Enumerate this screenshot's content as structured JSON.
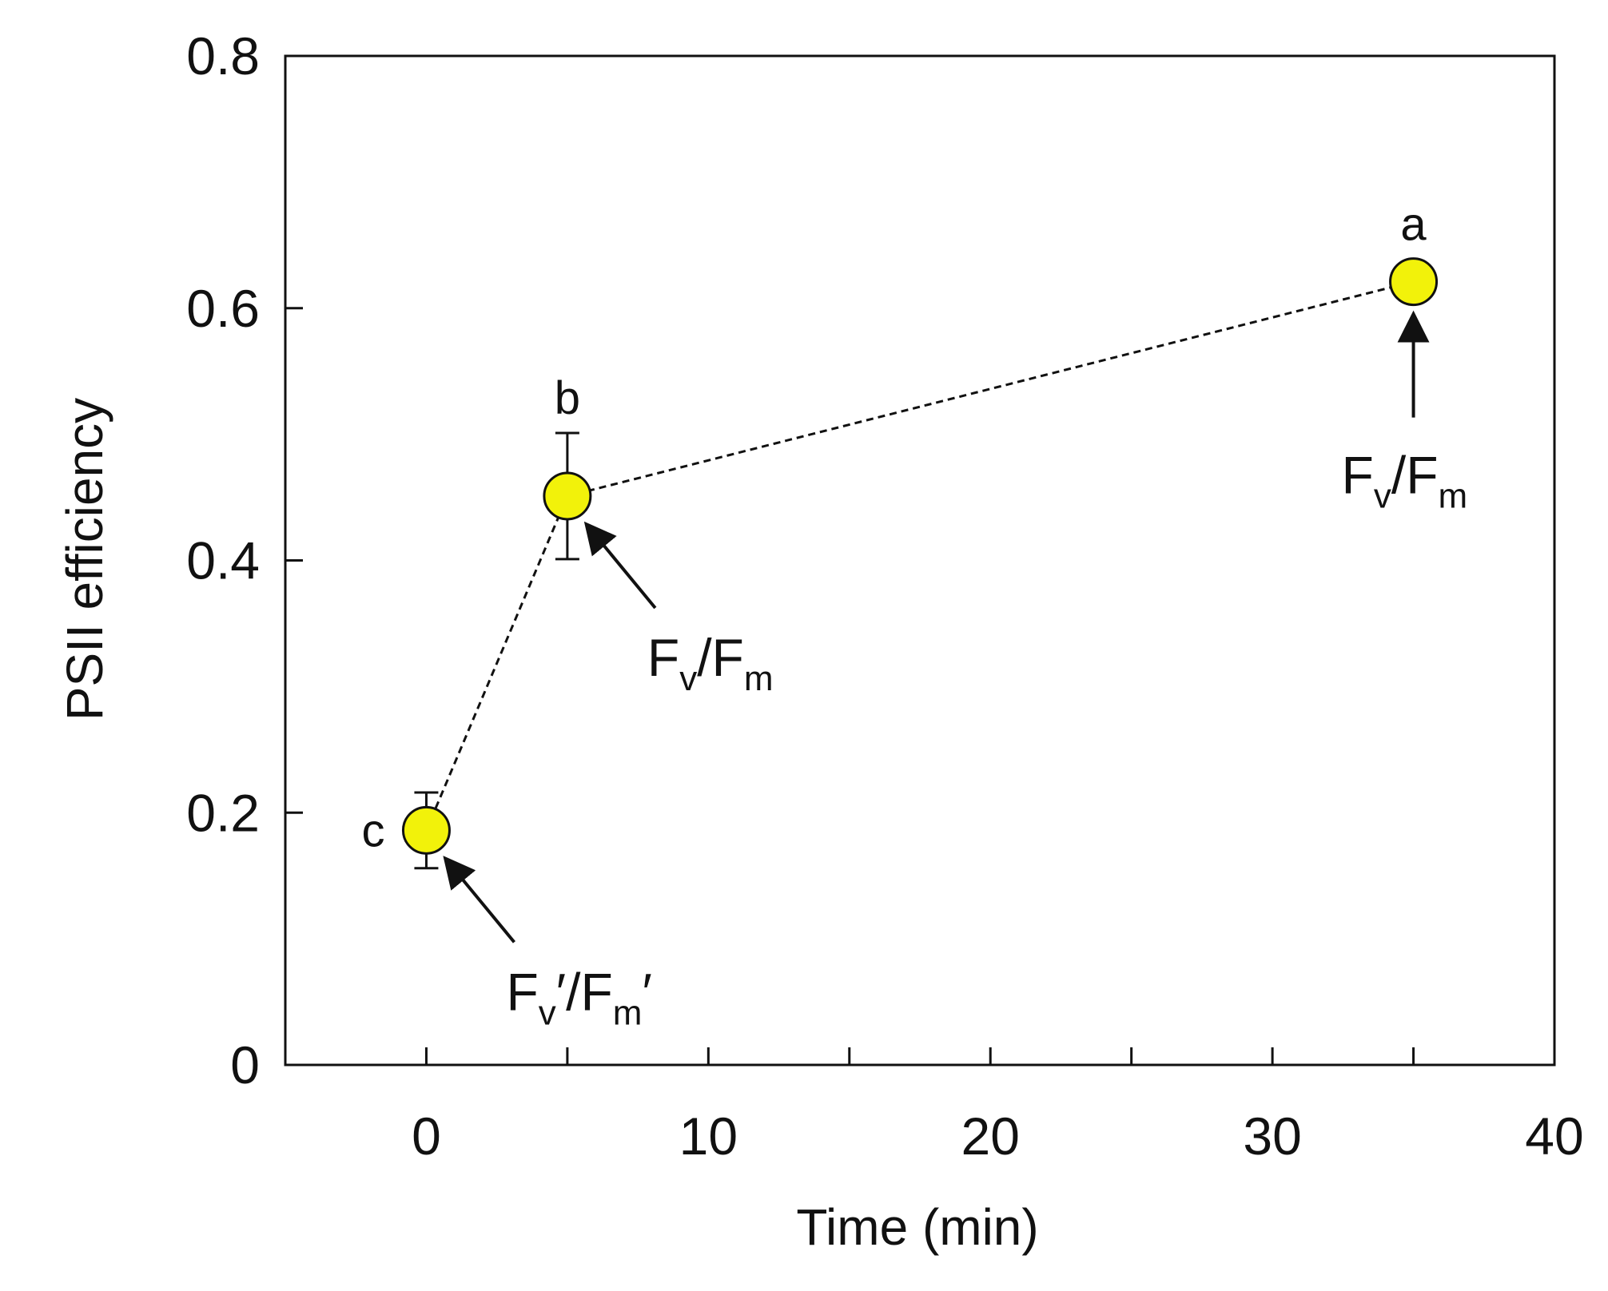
{
  "chart_data": {
    "type": "scatter",
    "xlabel": "Time (min)",
    "ylabel": "PSII efficiency",
    "xlim": [
      -5,
      40
    ],
    "ylim": [
      0,
      0.8
    ],
    "x_ticks": [
      0,
      10,
      20,
      30,
      40
    ],
    "y_ticks": [
      0,
      0.2,
      0.4,
      0.6,
      0.8
    ],
    "y_tick_labels": [
      "0",
      "0.2",
      "0.4",
      "0.6",
      "0.8"
    ],
    "x_minor_ticks": [
      5,
      15,
      25,
      35
    ],
    "grid": false,
    "legend": "none",
    "line_style": "dashed",
    "marker_color": "#f2f20a",
    "series": [
      {
        "x": [
          0,
          5,
          35
        ],
        "y": [
          0.186,
          0.451,
          0.621
        ],
        "error": [
          0.03,
          0.05,
          null
        ],
        "significance": [
          "c",
          "b",
          "a"
        ]
      }
    ],
    "annotations": [
      {
        "x": 0,
        "y": 0.186,
        "main": "F",
        "sub1": "v",
        "mid": "′/F",
        "sub2": "m",
        "tail": "′",
        "arrow": "from-lower-right"
      },
      {
        "x": 5,
        "y": 0.451,
        "main": "F",
        "sub1": "v",
        "mid": "/F",
        "sub2": "m",
        "tail": "",
        "arrow": "from-lower-right"
      },
      {
        "x": 35,
        "y": 0.621,
        "main": "F",
        "sub1": "v",
        "mid": "/F",
        "sub2": "m",
        "tail": "",
        "arrow": "from-below"
      }
    ]
  }
}
